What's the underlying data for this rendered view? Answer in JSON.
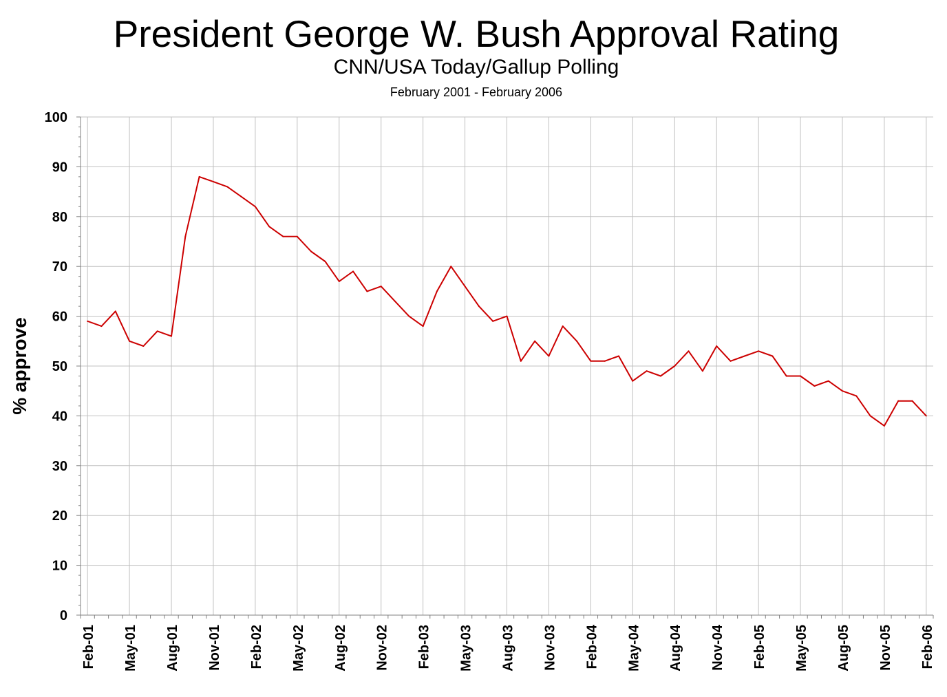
{
  "chart_data": {
    "type": "line",
    "title": "President George W. Bush Approval Rating",
    "subtitle": "CNN/USA Today/Gallup Polling",
    "date_range": "February 2001 - February 2006",
    "xlabel": "",
    "ylabel": "% approve",
    "ylim": [
      0,
      100
    ],
    "yticks": [
      0,
      10,
      20,
      30,
      40,
      50,
      60,
      70,
      80,
      90,
      100
    ],
    "xticks": [
      "Feb-01",
      "May-01",
      "Aug-01",
      "Nov-01",
      "Feb-02",
      "May-02",
      "Aug-02",
      "Nov-02",
      "Feb-03",
      "May-03",
      "Aug-03",
      "Nov-03",
      "Feb-04",
      "May-04",
      "Aug-04",
      "Nov-04",
      "Feb-05",
      "May-05",
      "Aug-05",
      "Nov-05",
      "Feb-06"
    ],
    "grid": true,
    "legend": "none",
    "line_color": "#cc0000",
    "series": [
      {
        "x": [
          "2001-02",
          "2001-03",
          "2001-04",
          "2001-05",
          "2001-06",
          "2001-07",
          "2001-08",
          "2001-09",
          "2001-10",
          "2001-11",
          "2001-12",
          "2002-01",
          "2002-02",
          "2002-03",
          "2002-04",
          "2002-05",
          "2002-06",
          "2002-07",
          "2002-08",
          "2002-09",
          "2002-10",
          "2002-11",
          "2002-12",
          "2003-01",
          "2003-02",
          "2003-03",
          "2003-04",
          "2003-05",
          "2003-06",
          "2003-07",
          "2003-08",
          "2003-09",
          "2003-10",
          "2003-11",
          "2003-12",
          "2004-01",
          "2004-02",
          "2004-03",
          "2004-04",
          "2004-05",
          "2004-06",
          "2004-07",
          "2004-08",
          "2004-09",
          "2004-10",
          "2004-11",
          "2004-12",
          "2005-01",
          "2005-02",
          "2005-03",
          "2005-04",
          "2005-05",
          "2005-06",
          "2005-07",
          "2005-08",
          "2005-09",
          "2005-10",
          "2005-11",
          "2005-12",
          "2006-01",
          "2006-02"
        ],
        "values": [
          59,
          58,
          61,
          55,
          54,
          57,
          56,
          76,
          88,
          87,
          86,
          84,
          82,
          78,
          76,
          76,
          73,
          71,
          67,
          69,
          65,
          66,
          63,
          60,
          58,
          65,
          70,
          66,
          62,
          59,
          60,
          51,
          55,
          52,
          58,
          55,
          51,
          51,
          52,
          47,
          49,
          48,
          50,
          53,
          49,
          54,
          51,
          52,
          53,
          52,
          48,
          48,
          46,
          47,
          45,
          44,
          40,
          38,
          43,
          43,
          40
        ]
      }
    ]
  }
}
